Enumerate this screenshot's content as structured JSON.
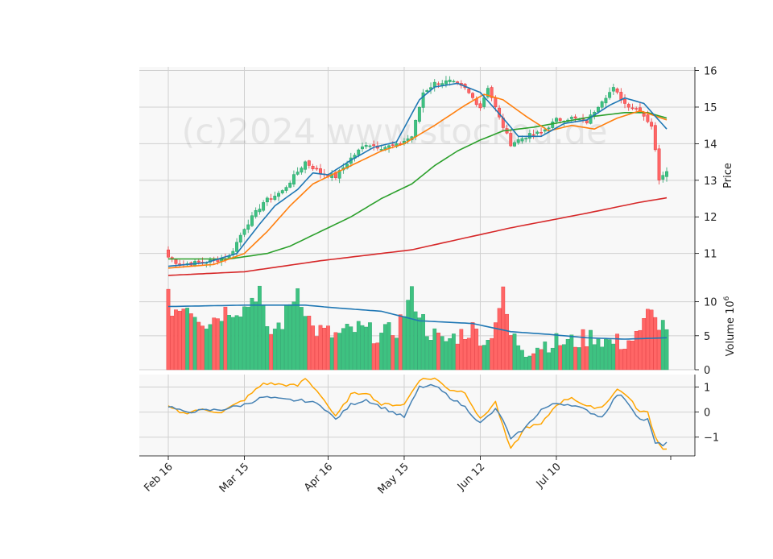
{
  "chart_data": [
    {
      "type": "candlestick",
      "panel": "price",
      "ylabel": "Price",
      "watermark": "(c)2024 www.stockou.de",
      "ylim": [
        10.2,
        16.1
      ],
      "yticks": [
        11,
        12,
        13,
        14,
        15,
        16
      ],
      "xticks": [
        "Feb 16",
        "Mar 15",
        "Apr 16",
        "May 15",
        "Jun 12",
        "Jul 10"
      ],
      "grid": true,
      "colors": {
        "up": "#26a269",
        "down": "#e8383b",
        "up_fill": "#3ec281",
        "down_fill": "#ff6666",
        "ma_short": "#1f77b4",
        "ma_mid": "#ff7f0e",
        "ma_long": "#2ca02c",
        "ma_200": "#d62728"
      },
      "anchors": {
        "close": [
          [
            0,
            10.9
          ],
          [
            3,
            10.7
          ],
          [
            8,
            10.75
          ],
          [
            12,
            10.8
          ],
          [
            16,
            10.9
          ],
          [
            20,
            11.7
          ],
          [
            25,
            12.4
          ],
          [
            30,
            12.7
          ],
          [
            36,
            13.5
          ],
          [
            40,
            13.2
          ],
          [
            44,
            13.1
          ],
          [
            48,
            13.6
          ],
          [
            52,
            14.0
          ],
          [
            56,
            13.9
          ],
          [
            60,
            13.95
          ],
          [
            64,
            14.2
          ],
          [
            67,
            15.4
          ],
          [
            70,
            15.65
          ],
          [
            74,
            15.7
          ],
          [
            78,
            15.5
          ],
          [
            82,
            15.0
          ],
          [
            84,
            15.55
          ],
          [
            87,
            14.7
          ],
          [
            90,
            14.0
          ],
          [
            94,
            14.2
          ],
          [
            98,
            14.3
          ],
          [
            102,
            14.65
          ],
          [
            106,
            14.7
          ],
          [
            110,
            14.6
          ],
          [
            114,
            15.2
          ],
          [
            117,
            15.5
          ],
          [
            120,
            15.1
          ],
          [
            124,
            14.9
          ],
          [
            127,
            14.5
          ],
          [
            128,
            13.8
          ],
          [
            129,
            13.05
          ],
          [
            131,
            13.3
          ]
        ]
      },
      "ma_anchors": {
        "ma_short": [
          [
            0,
            10.65
          ],
          [
            10,
            10.75
          ],
          [
            18,
            11.0
          ],
          [
            24,
            11.8
          ],
          [
            28,
            12.3
          ],
          [
            34,
            12.75
          ],
          [
            38,
            13.2
          ],
          [
            42,
            13.15
          ],
          [
            48,
            13.55
          ],
          [
            54,
            13.9
          ],
          [
            60,
            14.05
          ],
          [
            66,
            15.2
          ],
          [
            70,
            15.55
          ],
          [
            76,
            15.65
          ],
          [
            82,
            15.4
          ],
          [
            88,
            14.7
          ],
          [
            92,
            14.2
          ],
          [
            98,
            14.2
          ],
          [
            104,
            14.55
          ],
          [
            110,
            14.65
          ],
          [
            116,
            15.05
          ],
          [
            120,
            15.25
          ],
          [
            125,
            15.1
          ],
          [
            131,
            14.4
          ]
        ],
        "ma_mid": [
          [
            0,
            10.6
          ],
          [
            12,
            10.7
          ],
          [
            20,
            11.0
          ],
          [
            26,
            11.6
          ],
          [
            32,
            12.3
          ],
          [
            38,
            12.9
          ],
          [
            44,
            13.2
          ],
          [
            50,
            13.5
          ],
          [
            56,
            13.8
          ],
          [
            62,
            14.0
          ],
          [
            70,
            14.5
          ],
          [
            78,
            15.05
          ],
          [
            83,
            15.35
          ],
          [
            88,
            15.2
          ],
          [
            94,
            14.75
          ],
          [
            100,
            14.35
          ],
          [
            106,
            14.5
          ],
          [
            112,
            14.4
          ],
          [
            118,
            14.7
          ],
          [
            124,
            14.9
          ],
          [
            131,
            14.65
          ]
        ],
        "ma_long": [
          [
            0,
            10.85
          ],
          [
            16,
            10.85
          ],
          [
            26,
            11.0
          ],
          [
            32,
            11.2
          ],
          [
            40,
            11.6
          ],
          [
            48,
            12.0
          ],
          [
            56,
            12.5
          ],
          [
            64,
            12.9
          ],
          [
            70,
            13.4
          ],
          [
            76,
            13.8
          ],
          [
            82,
            14.1
          ],
          [
            88,
            14.35
          ],
          [
            96,
            14.45
          ],
          [
            104,
            14.6
          ],
          [
            112,
            14.75
          ],
          [
            120,
            14.85
          ],
          [
            126,
            14.85
          ],
          [
            131,
            14.7
          ]
        ],
        "ma_200": [
          [
            0,
            10.4
          ],
          [
            20,
            10.5
          ],
          [
            40,
            10.8
          ],
          [
            64,
            11.1
          ],
          [
            90,
            11.7
          ],
          [
            110,
            12.1
          ],
          [
            124,
            12.4
          ],
          [
            131,
            12.52
          ]
        ]
      }
    },
    {
      "type": "bar",
      "panel": "volume",
      "ylabel": "Volume  10",
      "ylabel_exp": "6",
      "ylim": [
        0,
        12.8
      ],
      "yticks": [
        0,
        5,
        10
      ],
      "ma_volume_anchors": [
        [
          0,
          9.3
        ],
        [
          20,
          9.5
        ],
        [
          36,
          9.5
        ],
        [
          44,
          9.1
        ],
        [
          56,
          8.6
        ],
        [
          66,
          7.2
        ],
        [
          80,
          6.8
        ],
        [
          90,
          5.6
        ],
        [
          100,
          5.2
        ],
        [
          110,
          4.7
        ],
        [
          120,
          4.5
        ],
        [
          131,
          4.7
        ]
      ]
    },
    {
      "type": "line",
      "panel": "oscillator",
      "ylim": [
        -1.75,
        1.5
      ],
      "yticks": [
        -1,
        0,
        1
      ],
      "colors": {
        "fast": "#4682b4",
        "slow": "#ffa500"
      },
      "fast_anchors": [
        [
          0,
          0.25
        ],
        [
          4,
          0
        ],
        [
          8,
          0.05
        ],
        [
          14,
          0.1
        ],
        [
          20,
          0.3
        ],
        [
          25,
          0.6
        ],
        [
          30,
          0.5
        ],
        [
          36,
          0.45
        ],
        [
          40,
          0.3
        ],
        [
          44,
          -0.3
        ],
        [
          48,
          0.3
        ],
        [
          52,
          0.5
        ],
        [
          56,
          0.2
        ],
        [
          62,
          -0.2
        ],
        [
          66,
          1.0
        ],
        [
          70,
          1.05
        ],
        [
          74,
          0.6
        ],
        [
          78,
          0.2
        ],
        [
          82,
          -0.45
        ],
        [
          86,
          0.1
        ],
        [
          88,
          -0.3
        ],
        [
          90,
          -1.1
        ],
        [
          94,
          -0.6
        ],
        [
          98,
          0.1
        ],
        [
          102,
          0.35
        ],
        [
          106,
          0.3
        ],
        [
          110,
          0.05
        ],
        [
          114,
          -0.2
        ],
        [
          118,
          0.7
        ],
        [
          120,
          0.55
        ],
        [
          124,
          -0.3
        ],
        [
          126,
          -0.3
        ],
        [
          128,
          -1.25
        ],
        [
          130,
          -1.3
        ],
        [
          131,
          -1.2
        ]
      ],
      "slow_anchors": [
        [
          0,
          0.2
        ],
        [
          4,
          -0.05
        ],
        [
          8,
          0.1
        ],
        [
          14,
          0.0
        ],
        [
          20,
          0.5
        ],
        [
          25,
          1.15
        ],
        [
          30,
          1.1
        ],
        [
          34,
          1.05
        ],
        [
          36,
          1.35
        ],
        [
          40,
          0.7
        ],
        [
          44,
          -0.2
        ],
        [
          48,
          0.7
        ],
        [
          52,
          0.8
        ],
        [
          56,
          0.3
        ],
        [
          62,
          0.3
        ],
        [
          66,
          1.3
        ],
        [
          70,
          1.35
        ],
        [
          74,
          0.9
        ],
        [
          78,
          0.8
        ],
        [
          82,
          -0.3
        ],
        [
          86,
          0.4
        ],
        [
          88,
          -0.6
        ],
        [
          90,
          -1.5
        ],
        [
          94,
          -0.6
        ],
        [
          98,
          -0.5
        ],
        [
          102,
          0.3
        ],
        [
          106,
          0.6
        ],
        [
          110,
          0.2
        ],
        [
          114,
          0.2
        ],
        [
          118,
          0.9
        ],
        [
          120,
          0.75
        ],
        [
          124,
          0.0
        ],
        [
          126,
          0.0
        ],
        [
          128,
          -1.0
        ],
        [
          130,
          -1.45
        ],
        [
          131,
          -1.5
        ]
      ]
    }
  ]
}
